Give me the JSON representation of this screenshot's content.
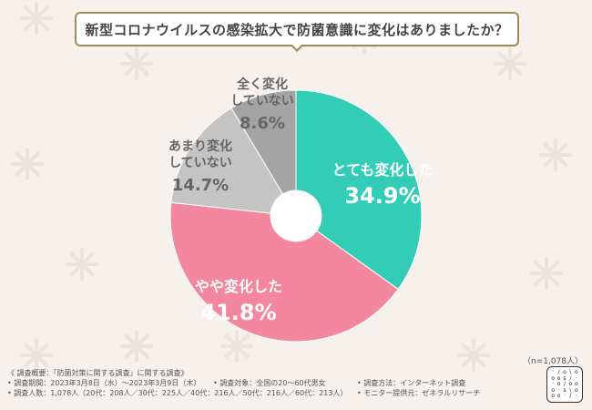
{
  "title": "新型コロナウイルスの感染拡大で防菌意識に変化はありましたか？",
  "chart_data": {
    "type": "pie",
    "categories": [
      "とても変化した",
      "やや変化した",
      "あまり変化していない",
      "全く変化していない"
    ],
    "values": [
      34.9,
      41.8,
      14.7,
      8.6
    ],
    "value_labels": [
      "34.9%",
      "41.8%",
      "14.7%",
      "8.6%"
    ],
    "colors": [
      "#33cdb7",
      "#f2879e",
      "#c4c4c4",
      "#a4a4a4"
    ],
    "label_colors": [
      "#ffffff",
      "#ffffff",
      "#666666",
      "#666666"
    ],
    "donut": true
  },
  "sample_note": "（n=1,078人）",
  "footer": {
    "line1": "《 調査概要：「防菌対策に関する調査」に関する調査》",
    "line2a": "• 調査期間：2023年3月8日（水）〜2023年3月9日（木）",
    "line2b": "• 調査対象：全国の20〜60代男女",
    "line2c": "• 調査方法：インターネット調査",
    "line3a": "• 調査人数：1,078人（20代：208人／30代：225人／40代：216人／50代：216人／60代：213人）",
    "line3b": "• モニター提供元：ゼネラルリサーチ"
  },
  "logo_glyphs": [
    "·",
    "/",
    "o",
    "\\",
    "o",
    "o",
    "o",
    "s",
    "/",
    "·",
    "·",
    "o",
    "/",
    "o",
    "o",
    "o",
    "·",
    "s",
    "\\",
    "o",
    "o",
    "o",
    "·",
    "/",
    "·"
  ]
}
